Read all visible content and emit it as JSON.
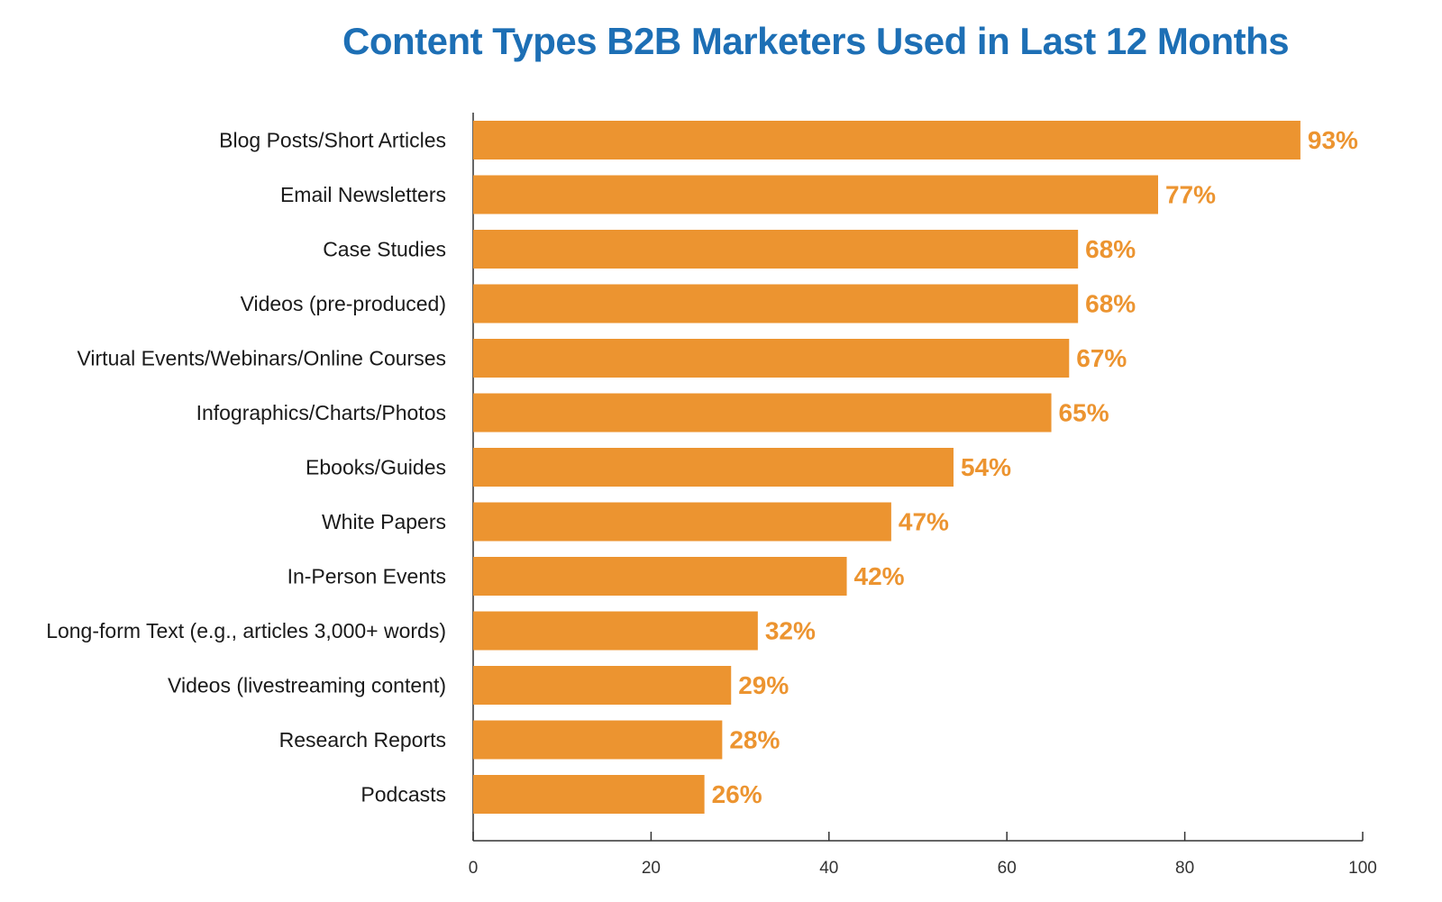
{
  "chart_data": {
    "type": "bar",
    "orientation": "horizontal",
    "title": "Content Types B2B Marketers Used in Last 12 Months",
    "xlabel": "",
    "ylabel": "",
    "categories": [
      "Blog Posts/Short Articles",
      "Email Newsletters",
      "Case Studies",
      "Videos (pre-produced)",
      "Virtual Events/Webinars/Online Courses",
      "Infographics/Charts/Photos",
      "Ebooks/Guides",
      "White Papers",
      "In-Person Events",
      "Long-form Text (e.g., articles 3,000+ words)",
      "Videos (livestreaming content)",
      "Research Reports",
      "Podcasts"
    ],
    "values": [
      93,
      77,
      68,
      68,
      67,
      65,
      54,
      47,
      42,
      32,
      29,
      28,
      26
    ],
    "value_labels": [
      "93%",
      "77%",
      "68%",
      "68%",
      "67%",
      "65%",
      "54%",
      "47%",
      "42%",
      "32%",
      "29%",
      "28%",
      "26%"
    ],
    "xlim": [
      0,
      100
    ],
    "x_ticks": [
      0,
      20,
      40,
      60,
      80,
      100
    ],
    "grid": false,
    "legend": "none",
    "colors": {
      "bar": "#ec9430",
      "value_label": "#ec9430",
      "title": "#1d6fb5",
      "axis": "#333333"
    }
  }
}
